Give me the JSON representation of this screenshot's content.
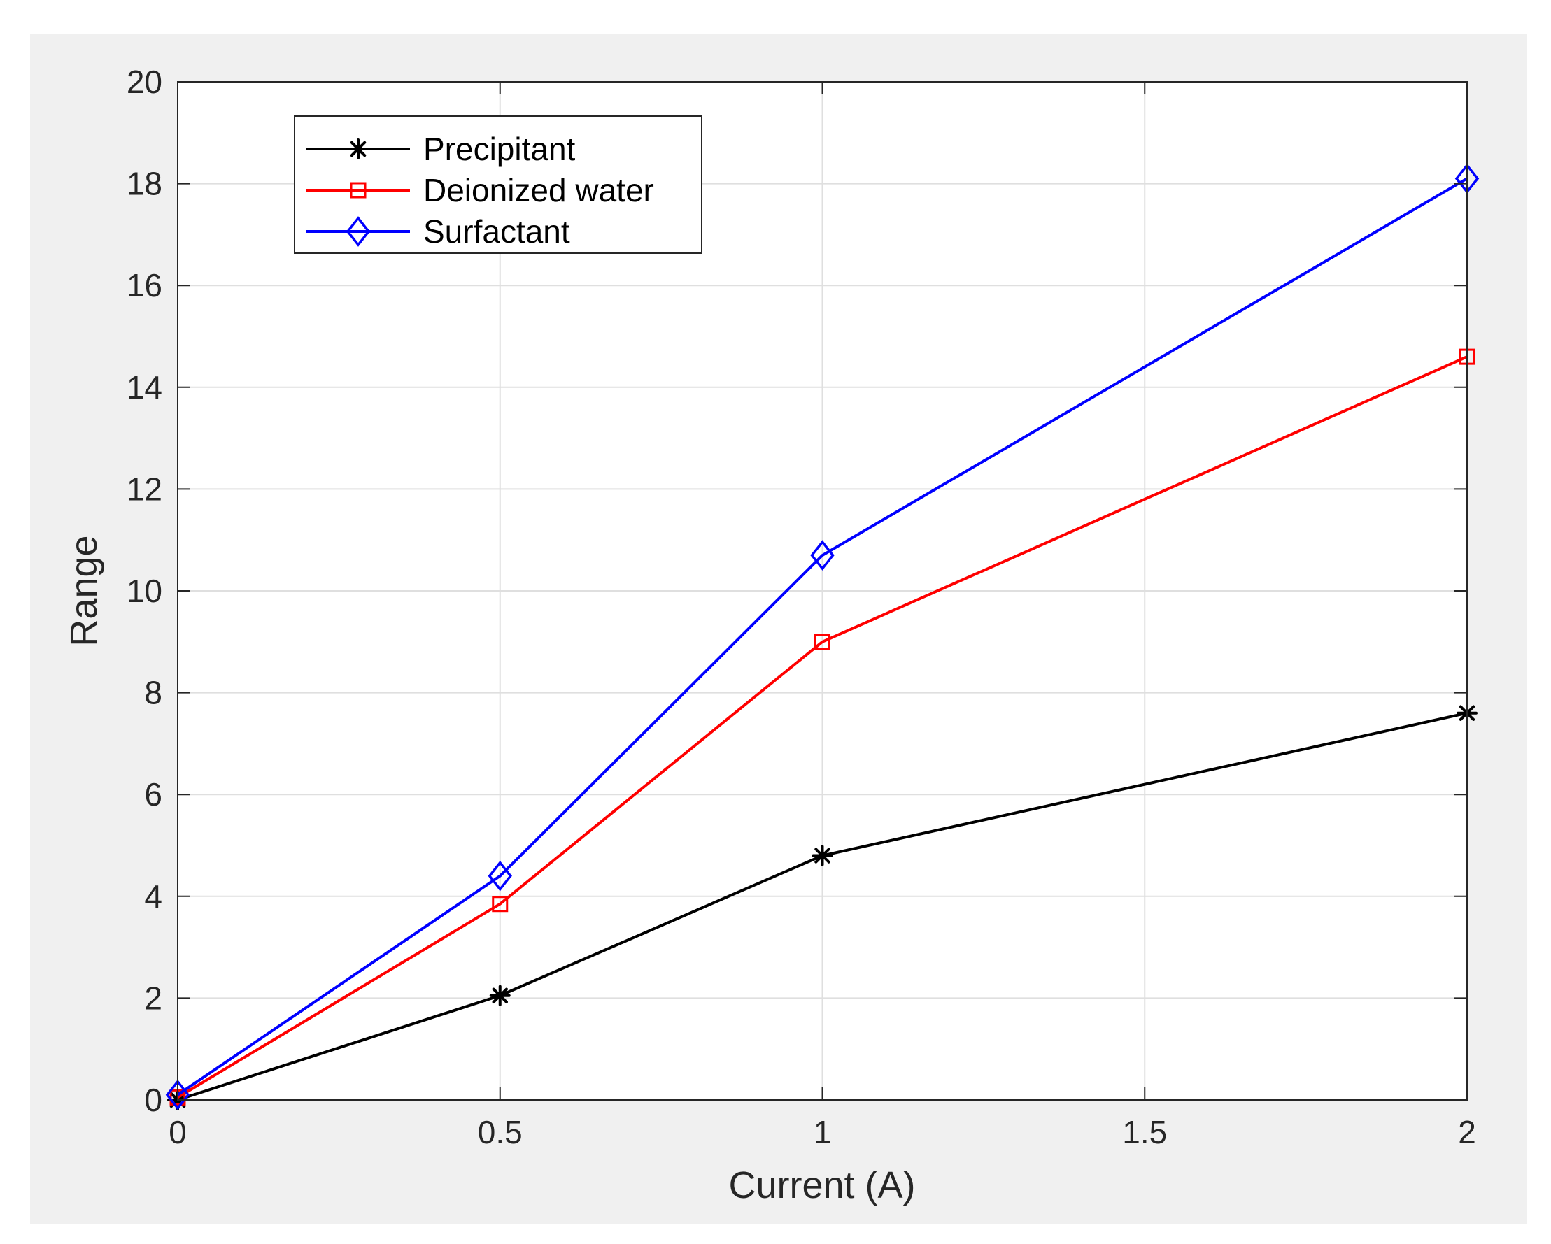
{
  "chart_data": {
    "type": "line",
    "xlabel": "Current (A)",
    "ylabel": "Range",
    "xlim": [
      0,
      2
    ],
    "ylim": [
      0,
      20
    ],
    "x_ticks": [
      0,
      0.5,
      1,
      1.5,
      2
    ],
    "x_tick_labels": [
      "0",
      "0.5",
      "1",
      "1.5",
      "2"
    ],
    "y_ticks": [
      0,
      2,
      4,
      6,
      8,
      10,
      12,
      14,
      16,
      18,
      20
    ],
    "y_tick_labels": [
      "0",
      "2",
      "4",
      "6",
      "8",
      "10",
      "12",
      "14",
      "16",
      "18",
      "20"
    ],
    "grid": true,
    "legend_position": "top-left",
    "series": [
      {
        "name": "Precipitant",
        "color": "#000000",
        "marker": "asterisk",
        "x": [
          0,
          0.5,
          1,
          2
        ],
        "y": [
          0.0,
          2.05,
          4.8,
          7.6
        ]
      },
      {
        "name": "Deionized water",
        "color": "#ff0000",
        "marker": "square",
        "x": [
          0,
          0.5,
          1,
          2
        ],
        "y": [
          0.05,
          3.85,
          9.0,
          14.6
        ]
      },
      {
        "name": "Surfactant",
        "color": "#0000ff",
        "marker": "diamond",
        "x": [
          0,
          0.5,
          1,
          2
        ],
        "y": [
          0.1,
          4.4,
          10.7,
          18.1
        ]
      }
    ]
  }
}
